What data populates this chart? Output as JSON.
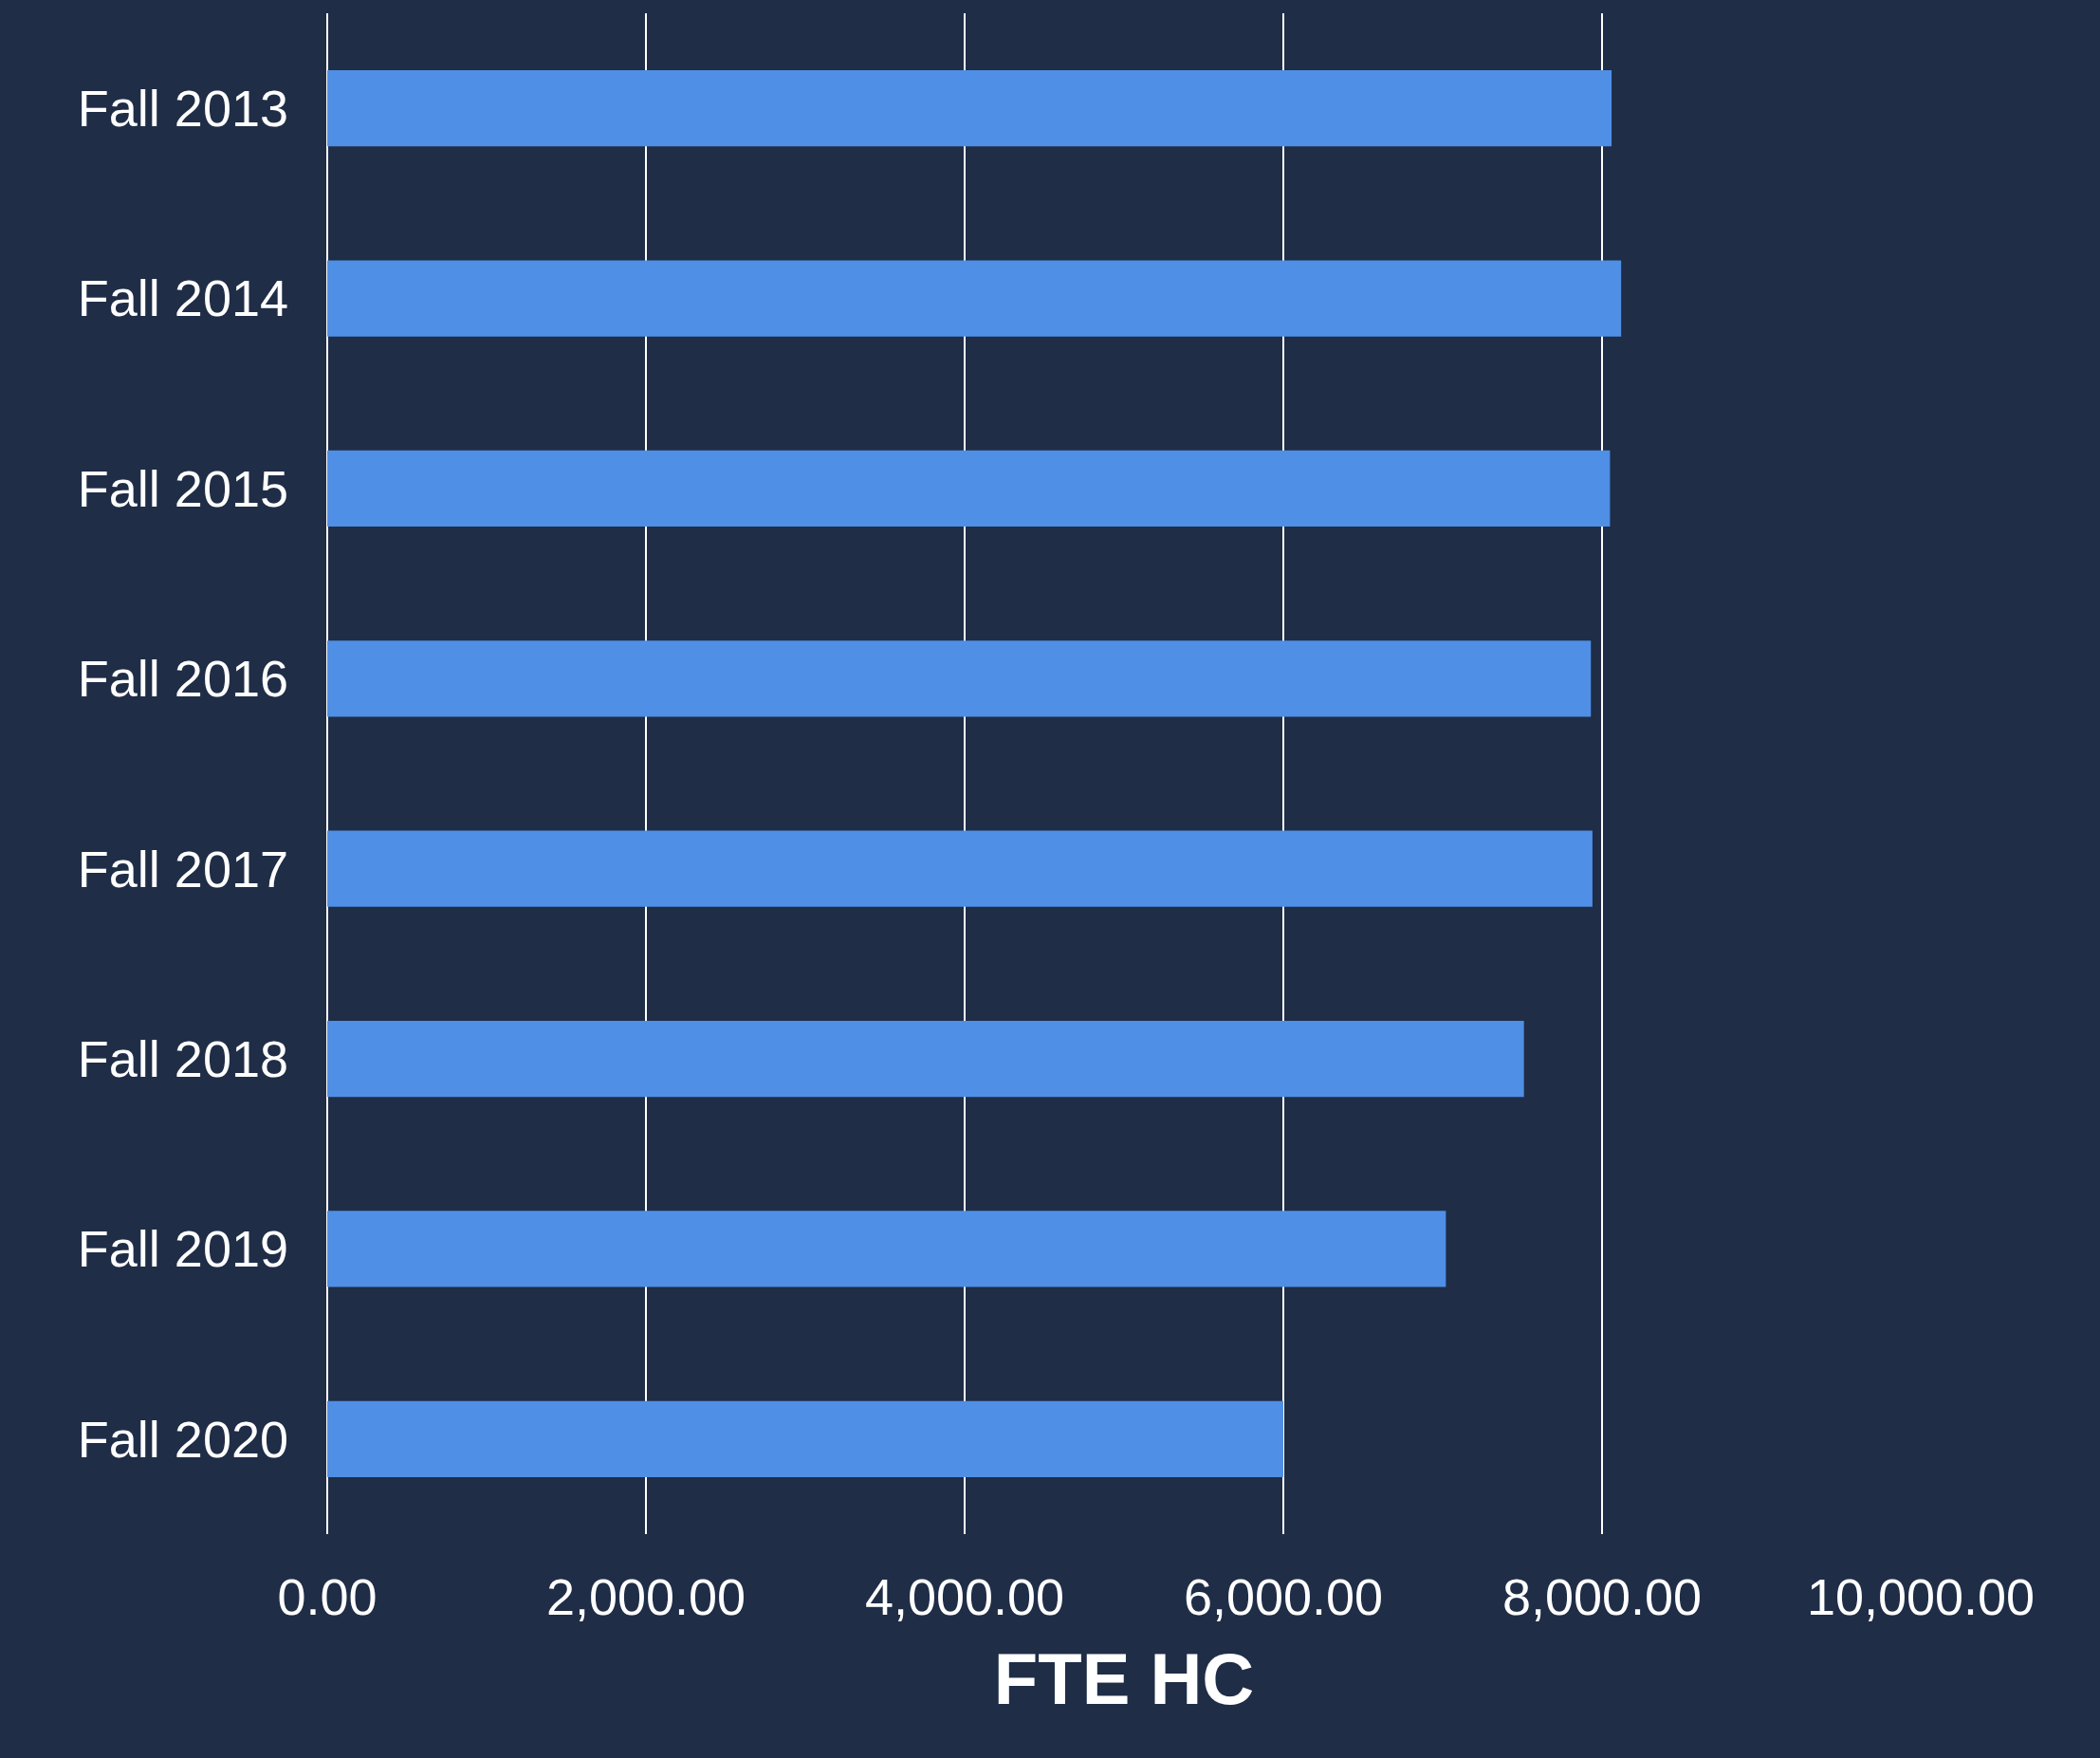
{
  "chart_data": {
    "type": "bar",
    "orientation": "horizontal",
    "xlabel": "FTE HC",
    "categories": [
      "Fall 2013",
      "Fall 2014",
      "Fall 2015",
      "Fall 2016",
      "Fall 2017",
      "Fall 2018",
      "Fall 2019",
      "Fall 2020"
    ],
    "values": [
      8060,
      8120,
      8050,
      7930,
      7940,
      7510,
      7020,
      6000
    ],
    "color": "#4f8fe6",
    "xlim": [
      0,
      10000
    ],
    "xticks": [
      {
        "value": 0,
        "label": "0.00"
      },
      {
        "value": 2000,
        "label": "2,000.00"
      },
      {
        "value": 4000,
        "label": "4,000.00"
      },
      {
        "value": 6000,
        "label": "6,000.00"
      },
      {
        "value": 8000,
        "label": "8,000.00"
      },
      {
        "value": 10000,
        "label": "10,000.00"
      }
    ],
    "grid": "x"
  }
}
